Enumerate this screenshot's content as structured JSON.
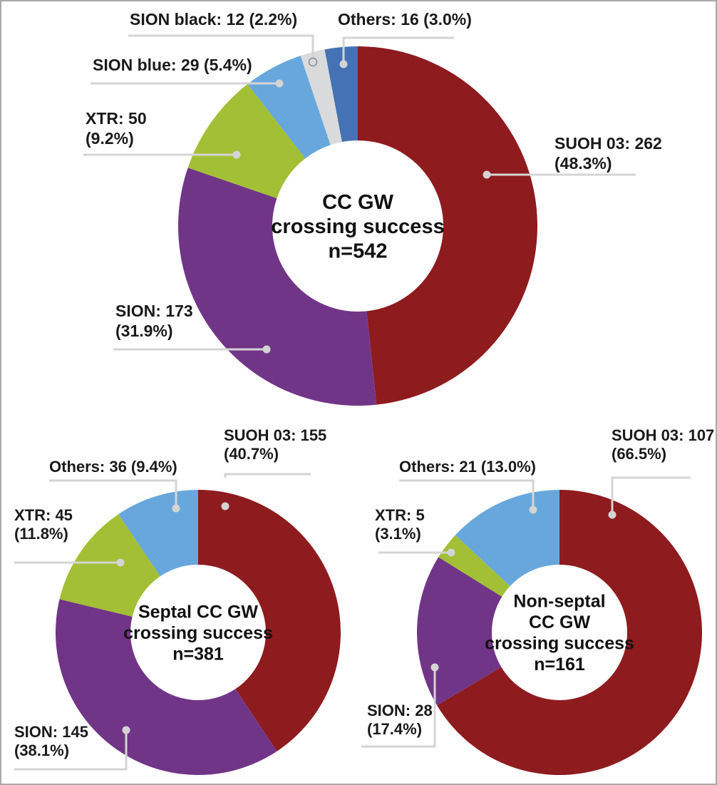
{
  "chart_data": [
    {
      "type": "pie",
      "variant": "donut",
      "title": "CC GW crossing success n=542",
      "center_label": [
        "CC GW",
        "crossing success",
        "n=542"
      ],
      "categories": [
        "SUOH 03",
        "SION",
        "XTR",
        "SION blue",
        "SION black",
        "Others"
      ],
      "values": [
        262,
        173,
        50,
        29,
        12,
        16
      ],
      "percentages": [
        48.3,
        31.9,
        9.2,
        5.4,
        2.2,
        3.0
      ],
      "colors": [
        "#8e1b1e",
        "#713587",
        "#a3bf35",
        "#68a7dc",
        "#d9dadb",
        "#4572b4"
      ],
      "labels": [
        [
          "SUOH 03: 262",
          "(48.3%)"
        ],
        [
          "SION: 173",
          "(31.9%)"
        ],
        [
          "XTR: 50",
          "(9.2%)"
        ],
        [
          "SION blue: 29 (5.4%)"
        ],
        [
          "SION black: 12 (2.2%)"
        ],
        [
          "Others: 16 (3.0%)"
        ]
      ]
    },
    {
      "type": "pie",
      "variant": "donut",
      "title": "Septal CC GW crossing success n=381",
      "center_label": [
        "Septal CC GW",
        "crossing success",
        "n=381"
      ],
      "categories": [
        "SUOH 03",
        "SION",
        "XTR",
        "Others"
      ],
      "values": [
        155,
        145,
        45,
        36
      ],
      "percentages": [
        40.7,
        38.1,
        11.8,
        9.4
      ],
      "colors": [
        "#8e1b1e",
        "#713587",
        "#a3bf35",
        "#68a7dc"
      ],
      "labels": [
        [
          "SUOH 03: 155",
          "(40.7%)"
        ],
        [
          "SION: 145",
          "(38.1%)"
        ],
        [
          "XTR: 45",
          "(11.8%)"
        ],
        [
          "Others: 36 (9.4%)"
        ]
      ]
    },
    {
      "type": "pie",
      "variant": "donut",
      "title": "Non-septal CC GW crossing success n=161",
      "center_label": [
        "Non-septal",
        "CC GW",
        "crossing success",
        "n=161"
      ],
      "categories": [
        "SUOH 03",
        "SION",
        "XTR",
        "Others"
      ],
      "values": [
        107,
        28,
        5,
        21
      ],
      "percentages": [
        66.5,
        17.4,
        3.1,
        13.0
      ],
      "colors": [
        "#8e1b1e",
        "#713587",
        "#a3bf35",
        "#68a7dc"
      ],
      "labels": [
        [
          "SUOH 03: 107",
          "(66.5%)"
        ],
        [
          "SION: 28",
          "(17.4%)"
        ],
        [
          "XTR: 5",
          "(3.1%)"
        ],
        [
          "Others: 21 (13.0%)"
        ]
      ]
    }
  ]
}
